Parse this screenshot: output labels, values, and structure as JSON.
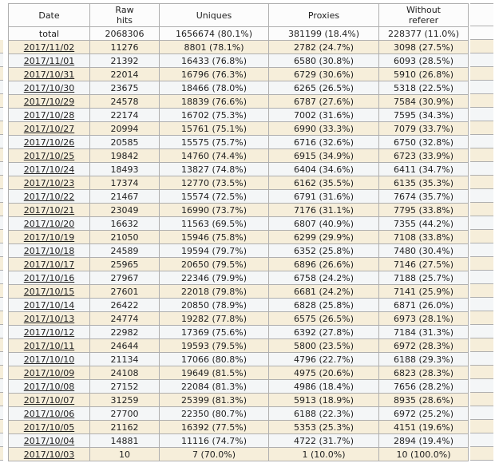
{
  "colors": {
    "row_beige": "#F6EEDA",
    "row_light": "#F4F6F7",
    "header_bg": "#FCFCFC",
    "border": "#AFAFAF",
    "text": "#222222"
  },
  "table": {
    "columns": [
      {
        "key": "date",
        "label": "Date",
        "lines": [
          "Date"
        ]
      },
      {
        "key": "raw_hits",
        "label": "Raw hits",
        "lines": [
          "Raw",
          "hits"
        ]
      },
      {
        "key": "uniques",
        "label": "Uniques",
        "lines": [
          "Uniques"
        ]
      },
      {
        "key": "proxies",
        "label": "Proxies",
        "lines": [
          "Proxies"
        ]
      },
      {
        "key": "without_referer",
        "label": "Without referer",
        "lines": [
          "Without",
          "referer"
        ]
      }
    ],
    "total_row": {
      "date": "total",
      "raw_hits": "2068306",
      "uniques": "1656674 (80.1%)",
      "proxies": "381199 (18.4%)",
      "without_referer": "228377 (11.0%)"
    },
    "rows": [
      {
        "date": "2017/11/02",
        "raw_hits": "11276",
        "uniques": "8801 (78.1%)",
        "proxies": "2782 (24.7%)",
        "without_referer": "3098 (27.5%)"
      },
      {
        "date": "2017/11/01",
        "raw_hits": "21392",
        "uniques": "16433 (76.8%)",
        "proxies": "6580 (30.8%)",
        "without_referer": "6093 (28.5%)"
      },
      {
        "date": "2017/10/31",
        "raw_hits": "22014",
        "uniques": "16796 (76.3%)",
        "proxies": "6729 (30.6%)",
        "without_referer": "5910 (26.8%)"
      },
      {
        "date": "2017/10/30",
        "raw_hits": "23675",
        "uniques": "18466 (78.0%)",
        "proxies": "6265 (26.5%)",
        "without_referer": "5318 (22.5%)"
      },
      {
        "date": "2017/10/29",
        "raw_hits": "24578",
        "uniques": "18839 (76.6%)",
        "proxies": "6787 (27.6%)",
        "without_referer": "7584 (30.9%)"
      },
      {
        "date": "2017/10/28",
        "raw_hits": "22174",
        "uniques": "16702 (75.3%)",
        "proxies": "7002 (31.6%)",
        "without_referer": "7595 (34.3%)"
      },
      {
        "date": "2017/10/27",
        "raw_hits": "20994",
        "uniques": "15761 (75.1%)",
        "proxies": "6990 (33.3%)",
        "without_referer": "7079 (33.7%)"
      },
      {
        "date": "2017/10/26",
        "raw_hits": "20585",
        "uniques": "15575 (75.7%)",
        "proxies": "6716 (32.6%)",
        "without_referer": "6750 (32.8%)"
      },
      {
        "date": "2017/10/25",
        "raw_hits": "19842",
        "uniques": "14760 (74.4%)",
        "proxies": "6915 (34.9%)",
        "without_referer": "6723 (33.9%)"
      },
      {
        "date": "2017/10/24",
        "raw_hits": "18493",
        "uniques": "13827 (74.8%)",
        "proxies": "6404 (34.6%)",
        "without_referer": "6411 (34.7%)"
      },
      {
        "date": "2017/10/23",
        "raw_hits": "17374",
        "uniques": "12770 (73.5%)",
        "proxies": "6162 (35.5%)",
        "without_referer": "6135 (35.3%)"
      },
      {
        "date": "2017/10/22",
        "raw_hits": "21467",
        "uniques": "15574 (72.5%)",
        "proxies": "6791 (31.6%)",
        "without_referer": "7674 (35.7%)"
      },
      {
        "date": "2017/10/21",
        "raw_hits": "23049",
        "uniques": "16990 (73.7%)",
        "proxies": "7176 (31.1%)",
        "without_referer": "7795 (33.8%)"
      },
      {
        "date": "2017/10/20",
        "raw_hits": "16632",
        "uniques": "11563 (69.5%)",
        "proxies": "6807 (40.9%)",
        "without_referer": "7355 (44.2%)"
      },
      {
        "date": "2017/10/19",
        "raw_hits": "21050",
        "uniques": "15946 (75.8%)",
        "proxies": "6299 (29.9%)",
        "without_referer": "7108 (33.8%)"
      },
      {
        "date": "2017/10/18",
        "raw_hits": "24589",
        "uniques": "19594 (79.7%)",
        "proxies": "6352 (25.8%)",
        "without_referer": "7480 (30.4%)"
      },
      {
        "date": "2017/10/17",
        "raw_hits": "25965",
        "uniques": "20650 (79.5%)",
        "proxies": "6896 (26.6%)",
        "without_referer": "7146 (27.5%)"
      },
      {
        "date": "2017/10/16",
        "raw_hits": "27967",
        "uniques": "22346 (79.9%)",
        "proxies": "6758 (24.2%)",
        "without_referer": "7188 (25.7%)"
      },
      {
        "date": "2017/10/15",
        "raw_hits": "27601",
        "uniques": "22018 (79.8%)",
        "proxies": "6681 (24.2%)",
        "without_referer": "7141 (25.9%)"
      },
      {
        "date": "2017/10/14",
        "raw_hits": "26422",
        "uniques": "20850 (78.9%)",
        "proxies": "6828 (25.8%)",
        "without_referer": "6871 (26.0%)"
      },
      {
        "date": "2017/10/13",
        "raw_hits": "24774",
        "uniques": "19282 (77.8%)",
        "proxies": "6575 (26.5%)",
        "without_referer": "6973 (28.1%)"
      },
      {
        "date": "2017/10/12",
        "raw_hits": "22982",
        "uniques": "17369 (75.6%)",
        "proxies": "6392 (27.8%)",
        "without_referer": "7184 (31.3%)"
      },
      {
        "date": "2017/10/11",
        "raw_hits": "24644",
        "uniques": "19593 (79.5%)",
        "proxies": "5800 (23.5%)",
        "without_referer": "6972 (28.3%)"
      },
      {
        "date": "2017/10/10",
        "raw_hits": "21134",
        "uniques": "17066 (80.8%)",
        "proxies": "4796 (22.7%)",
        "without_referer": "6188 (29.3%)"
      },
      {
        "date": "2017/10/09",
        "raw_hits": "24108",
        "uniques": "19649 (81.5%)",
        "proxies": "4975 (20.6%)",
        "without_referer": "6823 (28.3%)"
      },
      {
        "date": "2017/10/08",
        "raw_hits": "27152",
        "uniques": "22084 (81.3%)",
        "proxies": "4986 (18.4%)",
        "without_referer": "7656 (28.2%)"
      },
      {
        "date": "2017/10/07",
        "raw_hits": "31259",
        "uniques": "25399 (81.3%)",
        "proxies": "5913 (18.9%)",
        "without_referer": "8935 (28.6%)"
      },
      {
        "date": "2017/10/06",
        "raw_hits": "27700",
        "uniques": "22350 (80.7%)",
        "proxies": "6188 (22.3%)",
        "without_referer": "6972 (25.2%)"
      },
      {
        "date": "2017/10/05",
        "raw_hits": "21162",
        "uniques": "16392 (77.5%)",
        "proxies": "5353 (25.3%)",
        "without_referer": "4151 (19.6%)"
      },
      {
        "date": "2017/10/04",
        "raw_hits": "14881",
        "uniques": "11116 (74.7%)",
        "proxies": "4722 (31.7%)",
        "without_referer": "2894 (19.4%)"
      },
      {
        "date": "2017/10/03",
        "raw_hits": "10",
        "uniques": "7 (70.0%)",
        "proxies": "1 (10.0%)",
        "without_referer": "10 (100.0%)"
      }
    ]
  }
}
